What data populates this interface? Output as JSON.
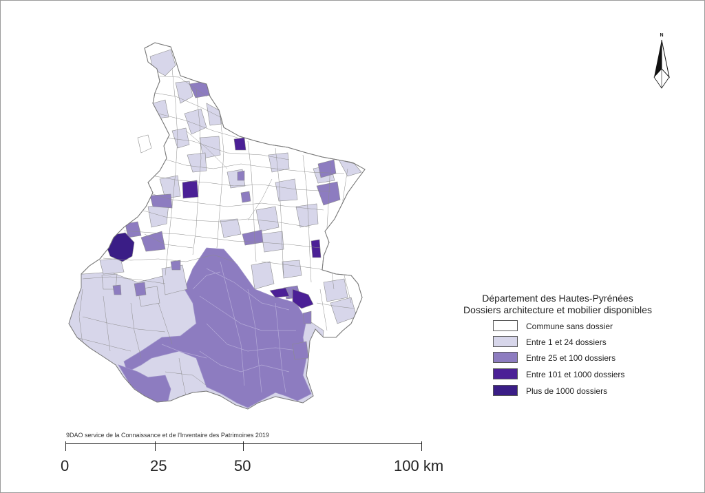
{
  "map": {
    "credit": "9DAO service de la Connaissance et de l'Inventaire des Patrimoines 2019",
    "north_label": "N",
    "legend": {
      "title_line1": "Département des Hautes-Pyrénées",
      "title_line2": "Dossiers architecture et mobilier disponibles",
      "items": [
        {
          "label": "Commune sans dossier",
          "color": "#ffffff"
        },
        {
          "label": "Entre 1 et 24 dossiers",
          "color": "#d7d6ea"
        },
        {
          "label": "Entre 25 et 100 dossiers",
          "color": "#8d7cc0"
        },
        {
          "label": "Entre 101 et 1000 dossiers",
          "color": "#4b2096"
        },
        {
          "label": "Plus de 1000 dossiers",
          "color": "#3a1d86"
        }
      ]
    },
    "scale": {
      "ticks": [
        "0",
        "25",
        "50",
        "100 km"
      ]
    }
  }
}
